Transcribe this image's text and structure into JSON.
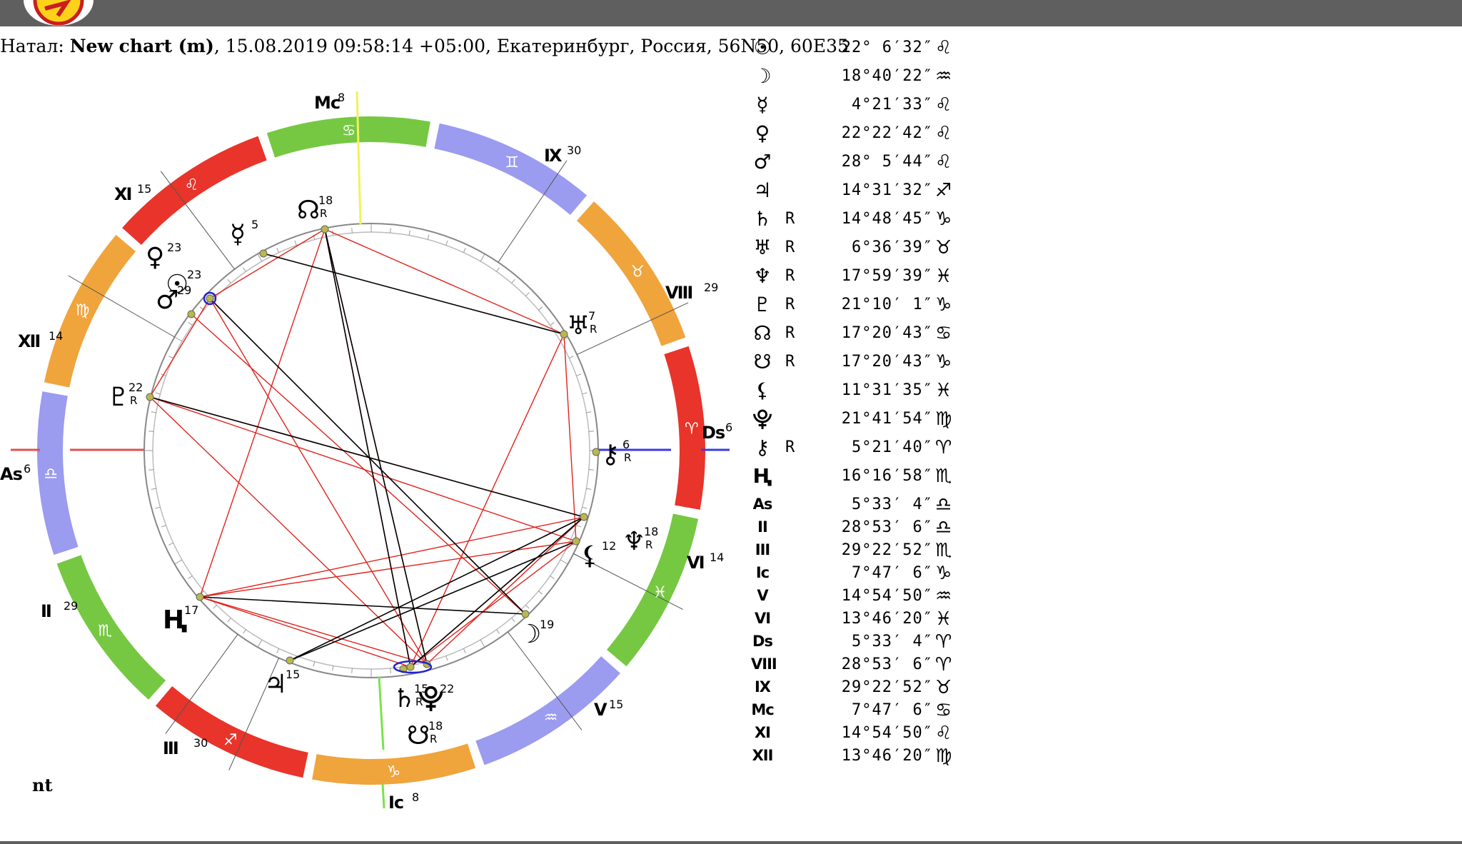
{
  "header": {
    "prefix": "Натал: ",
    "name": "New chart (m)",
    "details": ", 15.08.2019 09:58:14 +05:00, Екатеринбург, Россия, 56N50, 60E35"
  },
  "footer_label": "nt",
  "colors": {
    "fire": "#e8342a",
    "earth": "#f0a43c",
    "air": "#9b9bf0",
    "water": "#76c843",
    "aspect_hard": "#000000",
    "aspect_soft": "#e0231c",
    "mc_line": "#f2f25a",
    "ic_line": "#7be34a",
    "as_line": "#e35050",
    "ds_line": "#3a3ae8"
  },
  "zodiac_ring": [
    "♈",
    "♉",
    "♊",
    "♋",
    "♌",
    "♍",
    "♎",
    "♏",
    "♐",
    "♑",
    "♒",
    "♓"
  ],
  "angles": [
    {
      "name": "As",
      "label": "As",
      "degree": "6"
    },
    {
      "name": "Ds",
      "label": "Ds",
      "degree": "6"
    },
    {
      "name": "Mc",
      "label": "Mc",
      "degree": "8"
    },
    {
      "name": "Ic",
      "label": "Ic",
      "degree": "8"
    }
  ],
  "houses": [
    {
      "label": "II",
      "degree": "29"
    },
    {
      "label": "III",
      "degree": "30"
    },
    {
      "label": "V",
      "degree": "15"
    },
    {
      "label": "VI",
      "degree": "14"
    },
    {
      "label": "VIII",
      "degree": "29"
    },
    {
      "label": "IX",
      "degree": "30"
    },
    {
      "label": "XI",
      "degree": "15"
    },
    {
      "label": "XII",
      "degree": "14"
    }
  ],
  "wheel_planets": [
    {
      "name": "sun",
      "glyph": "☉",
      "degree": "23"
    },
    {
      "name": "moon",
      "glyph": "☽",
      "degree": "19"
    },
    {
      "name": "mercury",
      "glyph": "☿",
      "degree": "5"
    },
    {
      "name": "venus",
      "glyph": "♀",
      "degree": "23"
    },
    {
      "name": "mars",
      "glyph": "♂",
      "degree": "29"
    },
    {
      "name": "jupiter",
      "glyph": "♃",
      "degree": "15"
    },
    {
      "name": "saturn",
      "glyph": "♄",
      "degree": "15",
      "retro": "R"
    },
    {
      "name": "uranus",
      "glyph": "♅",
      "degree": "7",
      "retro": "R"
    },
    {
      "name": "neptune",
      "glyph": "♆",
      "degree": "18",
      "retro": "R"
    },
    {
      "name": "pluto",
      "glyph": "♇",
      "degree": "22",
      "retro": "R"
    },
    {
      "name": "north-node",
      "glyph": "☊",
      "degree": "18",
      "retro": "R"
    },
    {
      "name": "south-node",
      "glyph": "☋",
      "degree": "18",
      "retro": "R"
    },
    {
      "name": "lilith",
      "glyph": "⚸",
      "degree": "12"
    },
    {
      "name": "proserpina",
      "glyph": "⯓",
      "degree": "22"
    },
    {
      "name": "chiron",
      "glyph": "⚷",
      "degree": "6",
      "retro": "R"
    },
    {
      "name": "h-point",
      "glyph": "Ң",
      "degree": "17"
    }
  ],
  "positions": [
    {
      "glyph": "☉",
      "label": "",
      "retro": "",
      "pos": "22° 6′32″",
      "sign": "♌"
    },
    {
      "glyph": "☽",
      "label": "",
      "retro": "",
      "pos": "18°40′22″",
      "sign": "♒"
    },
    {
      "glyph": "☿",
      "label": "",
      "retro": "",
      "pos": "4°21′33″",
      "sign": "♌"
    },
    {
      "glyph": "♀",
      "label": "",
      "retro": "",
      "pos": "22°22′42″",
      "sign": "♌"
    },
    {
      "glyph": "♂",
      "label": "",
      "retro": "",
      "pos": "28° 5′44″",
      "sign": "♌"
    },
    {
      "glyph": "♃",
      "label": "",
      "retro": "",
      "pos": "14°31′32″",
      "sign": "♐"
    },
    {
      "glyph": "♄",
      "label": "",
      "retro": "R",
      "pos": "14°48′45″",
      "sign": "♑"
    },
    {
      "glyph": "♅",
      "label": "",
      "retro": "R",
      "pos": "6°36′39″",
      "sign": "♉"
    },
    {
      "glyph": "♆",
      "label": "",
      "retro": "R",
      "pos": "17°59′39″",
      "sign": "♓"
    },
    {
      "glyph": "♇",
      "label": "",
      "retro": "R",
      "pos": "21°10′ 1″",
      "sign": "♑"
    },
    {
      "glyph": "☊",
      "label": "",
      "retro": "R",
      "pos": "17°20′43″",
      "sign": "♋"
    },
    {
      "glyph": "☋",
      "label": "",
      "retro": "R",
      "pos": "17°20′43″",
      "sign": "♑"
    },
    {
      "glyph": "⚸",
      "label": "",
      "retro": "",
      "pos": "11°31′35″",
      "sign": "♓"
    },
    {
      "glyph": "⯓",
      "label": "",
      "retro": "",
      "pos": "21°41′54″",
      "sign": "♍"
    },
    {
      "glyph": "⚷",
      "label": "",
      "retro": "R",
      "pos": "5°21′40″",
      "sign": "♈"
    },
    {
      "glyph": "Ң",
      "label": "",
      "retro": "",
      "pos": "16°16′58″",
      "sign": "♏"
    },
    {
      "glyph": "",
      "label": "As",
      "retro": "",
      "pos": "5°33′ 4″",
      "sign": "♎"
    },
    {
      "glyph": "",
      "label": "II",
      "retro": "",
      "pos": "28°53′ 6″",
      "sign": "♎"
    },
    {
      "glyph": "",
      "label": "III",
      "retro": "",
      "pos": "29°22′52″",
      "sign": "♏"
    },
    {
      "glyph": "",
      "label": "Ic",
      "retro": "",
      "pos": "7°47′ 6″",
      "sign": "♑"
    },
    {
      "glyph": "",
      "label": "V",
      "retro": "",
      "pos": "14°54′50″",
      "sign": "♒"
    },
    {
      "glyph": "",
      "label": "VI",
      "retro": "",
      "pos": "13°46′20″",
      "sign": "♓"
    },
    {
      "glyph": "",
      "label": "Ds",
      "retro": "",
      "pos": "5°33′ 4″",
      "sign": "♈"
    },
    {
      "glyph": "",
      "label": "VIII",
      "retro": "",
      "pos": "28°53′ 6″",
      "sign": "♈"
    },
    {
      "glyph": "",
      "label": "IX",
      "retro": "",
      "pos": "29°22′52″",
      "sign": "♉"
    },
    {
      "glyph": "",
      "label": "Mc",
      "retro": "",
      "pos": "7°47′ 6″",
      "sign": "♋"
    },
    {
      "glyph": "",
      "label": "XI",
      "retro": "",
      "pos": "14°54′50″",
      "sign": "♌"
    },
    {
      "glyph": "",
      "label": "XII",
      "retro": "",
      "pos": "13°46′20″",
      "sign": "♍"
    }
  ]
}
